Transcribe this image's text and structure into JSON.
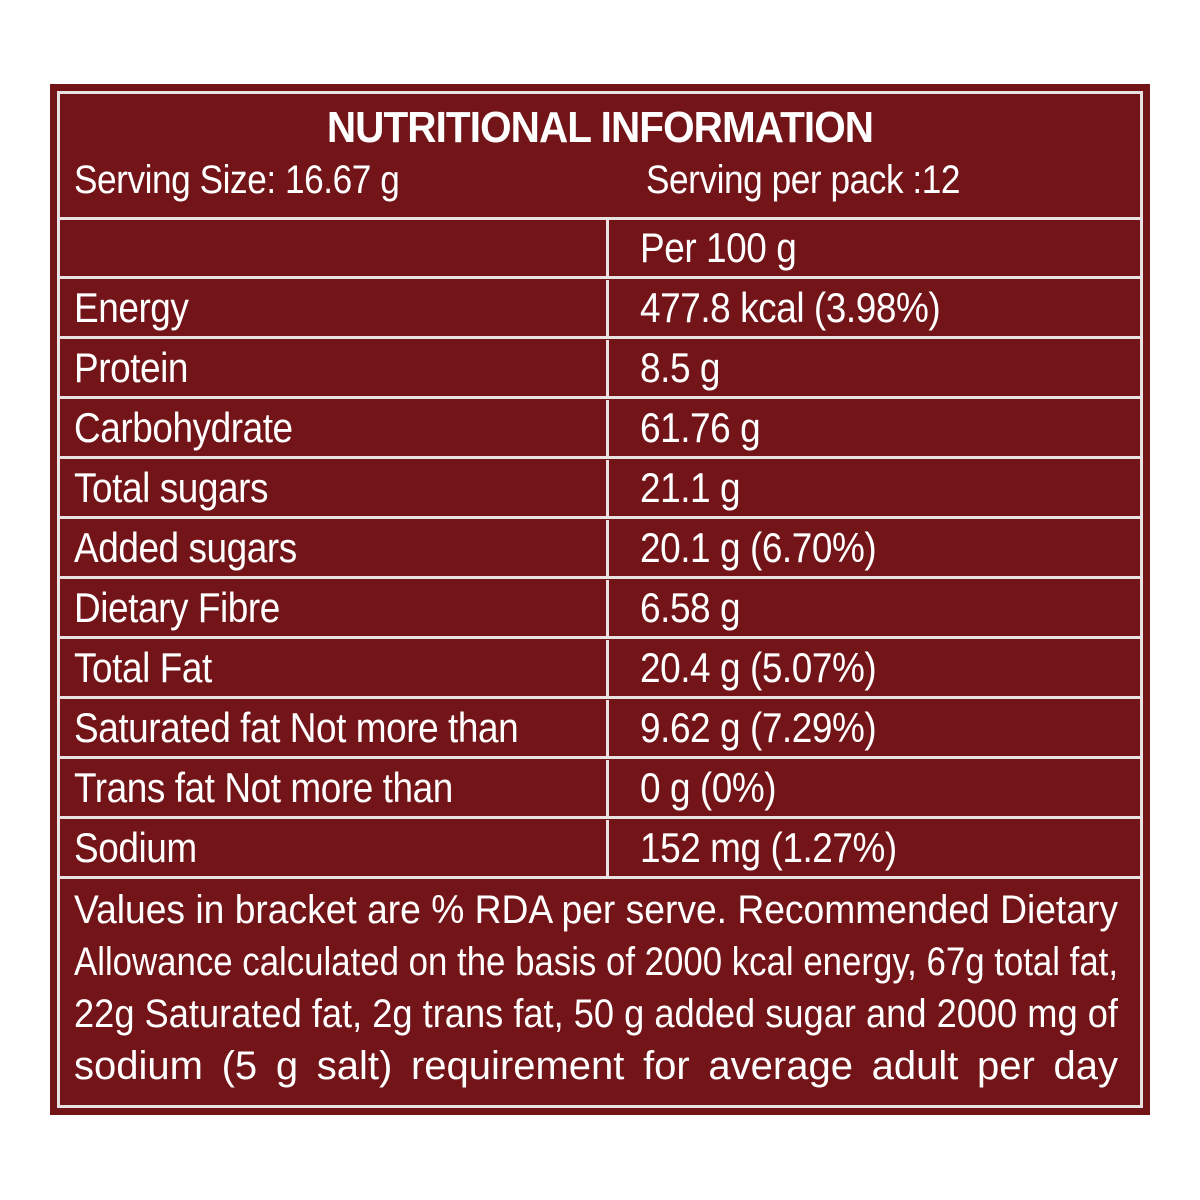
{
  "panel": {
    "title": "NUTRITIONAL INFORMATION",
    "serving_size": "Serving Size: 16.67 g",
    "servings_per_pack": "Serving  per pack :12",
    "column_header": "Per 100 g",
    "colors": {
      "background": "#731418",
      "lines": "#e9e2e2",
      "text": "#ffffff"
    },
    "rows": [
      {
        "label": "Energy",
        "value": "477.8 kcal (3.98%)"
      },
      {
        "label": "Protein",
        "value": "8.5 g"
      },
      {
        "label": "Carbohydrate",
        "value": "61.76 g"
      },
      {
        "label": "Total sugars",
        "value": "21.1 g"
      },
      {
        "label": "Added sugars",
        "value": "20.1 g (6.70%)"
      },
      {
        "label": "Dietary Fibre",
        "value": "6.58 g"
      },
      {
        "label": "Total Fat",
        "value": "20.4 g (5.07%)"
      },
      {
        "label": "Saturated fat Not more than",
        "value": "9.62 g (7.29%)"
      },
      {
        "label": "Trans fat Not more than",
        "value": "0 g (0%)"
      },
      {
        "label": "Sodium",
        "value": "152 mg (1.27%)"
      }
    ],
    "footnote_lines": [
      "Values in bracket are % RDA per serve. Recommended Dietary",
      "Allowance calculated on the basis of 2000 kcal energy, 67g total fat,",
      "22g Saturated fat, 2g trans fat, 50 g added sugar and 2000 mg of",
      "sodium (5 g salt) requirement for average adult per day"
    ]
  }
}
